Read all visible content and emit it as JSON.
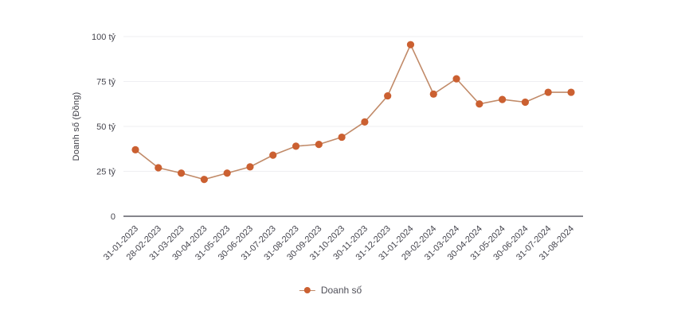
{
  "chart_data": {
    "type": "line",
    "title": "",
    "xlabel": "",
    "ylabel": "Doanh số (Đồng)",
    "x": [
      "31-01-2023",
      "28-02-2023",
      "31-03-2023",
      "30-04-2023",
      "31-05-2023",
      "30-06-2023",
      "31-07-2023",
      "31-08-2023",
      "30-09-2023",
      "31-10-2023",
      "30-11-2023",
      "31-12-2023",
      "31-01-2024",
      "29-02-2024",
      "31-03-2024",
      "30-04-2024",
      "31-05-2024",
      "30-06-2024",
      "31-07-2024",
      "31-08-2024"
    ],
    "series": [
      {
        "name": "Doanh số",
        "values": [
          37,
          27,
          24,
          20.5,
          24,
          27.5,
          34,
          39,
          40,
          44,
          52.5,
          67,
          95.5,
          68,
          76.5,
          62.5,
          65,
          63.5,
          69,
          69
        ]
      }
    ],
    "ylim": [
      0,
      100
    ],
    "y_ticks": [
      {
        "value": 100,
        "label": "100 tỷ"
      },
      {
        "value": 75,
        "label": "75 tỷ"
      },
      {
        "value": 50,
        "label": "50 tỷ"
      },
      {
        "value": 25,
        "label": "25 tỷ"
      },
      {
        "value": 0,
        "label": "0"
      }
    ],
    "grid": "horizontal-only",
    "legend_position": "bottom",
    "colors": {
      "point": "#cb6031",
      "line": "#c18a68",
      "grid": "#efeff2",
      "axis": "#85858c",
      "tick_text": "#45454e",
      "legend_text": "#4f4f58"
    }
  }
}
